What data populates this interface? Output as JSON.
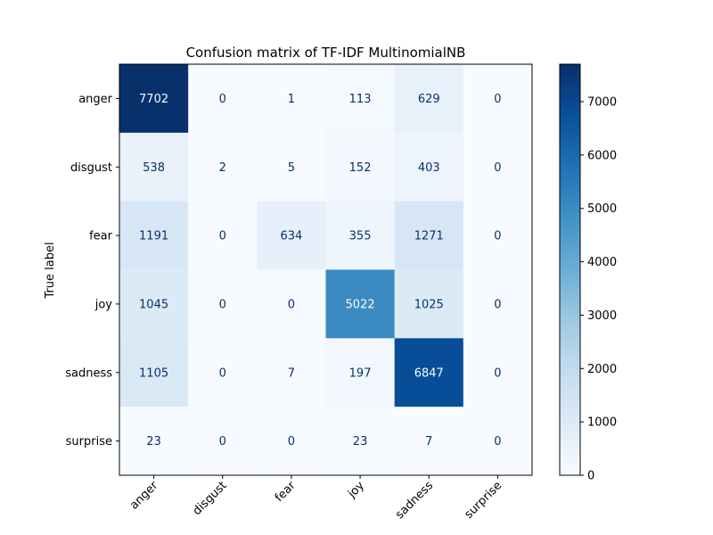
{
  "chart_data": {
    "type": "heatmap",
    "title": "Confusion matrix of TF-IDF MultinomialNB",
    "ylabel": "True label",
    "xlabel": "",
    "x_categories": [
      "anger",
      "disgust",
      "fear",
      "joy",
      "sadness",
      "surprise"
    ],
    "y_categories": [
      "anger",
      "disgust",
      "fear",
      "joy",
      "sadness",
      "surprise"
    ],
    "values": [
      [
        7702,
        0,
        1,
        113,
        629,
        0
      ],
      [
        538,
        2,
        5,
        152,
        403,
        0
      ],
      [
        1191,
        0,
        634,
        355,
        1271,
        0
      ],
      [
        1045,
        0,
        0,
        5022,
        1025,
        0
      ],
      [
        1105,
        0,
        7,
        197,
        6847,
        0
      ],
      [
        23,
        0,
        0,
        23,
        7,
        0
      ]
    ],
    "colormap": "Blues",
    "colorbar": {
      "range": [
        0,
        7702
      ],
      "ticks": [
        0,
        1000,
        2000,
        3000,
        4000,
        5000,
        6000,
        7000
      ]
    },
    "x_tick_rotation_deg": 45
  }
}
